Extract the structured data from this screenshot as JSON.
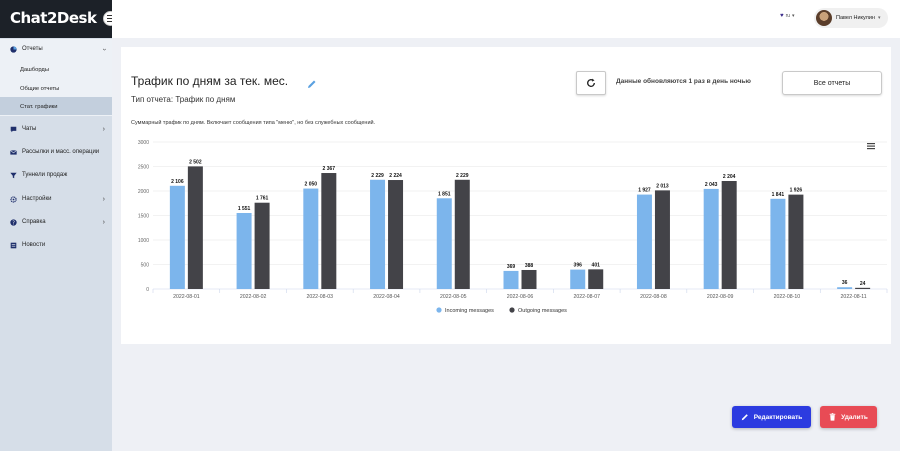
{
  "app": {
    "logo": "Chat2Desk"
  },
  "sidebar": {
    "items": [
      {
        "label": "Отчеты",
        "icon": "pie-chart-icon",
        "expanded": true
      },
      {
        "label": "Чаты",
        "icon": "chat-icon"
      },
      {
        "label": "Рассылки и масс. операции",
        "icon": "mail-icon"
      },
      {
        "label": "Туннели продаж",
        "icon": "funnel-icon"
      },
      {
        "label": "Настройки",
        "icon": "gear-icon"
      },
      {
        "label": "Справка",
        "icon": "help-icon"
      },
      {
        "label": "Новости",
        "icon": "news-icon"
      }
    ],
    "subitems": [
      {
        "label": "Дашборды"
      },
      {
        "label": "Общие отчеты"
      },
      {
        "label": "Стат. графики",
        "active": true
      }
    ]
  },
  "topbar": {
    "lang": "ru",
    "user_name": "Павел Никулин"
  },
  "report": {
    "title": "Трафик по дням за тек. мес.",
    "type_label": "Тип отчета: Трафик по дням",
    "update_note": "Данные обновляются 1 раз в день ночью",
    "all_reports_label": "Все отчеты",
    "description": "Суммарный трафик по дням. Включает сообщения типа \"меню\", но без служебных сообщений."
  },
  "actions": {
    "edit_label": "Редактировать",
    "delete_label": "Удалить"
  },
  "colors": {
    "incoming": "#7cb5ec",
    "outgoing": "#434348",
    "edit": "#2c3be0",
    "delete": "#e84b55"
  },
  "chart_data": {
    "type": "bar",
    "categories": [
      "2022-08-01",
      "2022-08-02",
      "2022-08-03",
      "2022-08-04",
      "2022-08-05",
      "2022-08-06",
      "2022-08-07",
      "2022-08-08",
      "2022-08-09",
      "2022-08-10",
      "2022-08-11"
    ],
    "series": [
      {
        "name": "Incoming messages",
        "values": [
          2106,
          1551,
          2050,
          2229,
          1851,
          369,
          396,
          1927,
          2043,
          1841,
          36
        ]
      },
      {
        "name": "Outgoing messages",
        "values": [
          2502,
          1761,
          2367,
          2224,
          2229,
          388,
          401,
          2013,
          2204,
          1926,
          24
        ]
      }
    ],
    "value_labels": {
      "Incoming messages": [
        "2 106",
        "1 551",
        "2 050",
        "2 229",
        "1 851",
        "369",
        "396",
        "1 927",
        "2 043",
        "1 841",
        "36"
      ],
      "Outgoing messages": [
        "2 502",
        "1 761",
        "2 367",
        "2 224",
        "2 229",
        "388",
        "401",
        "2 013",
        "2 204",
        "1 926",
        "24"
      ]
    },
    "yticks": [
      "0",
      "500",
      "1000",
      "1500",
      "2000",
      "2500",
      "3000"
    ],
    "ylim": [
      0,
      3000
    ],
    "grid": true,
    "legend_position": "bottom-center"
  }
}
